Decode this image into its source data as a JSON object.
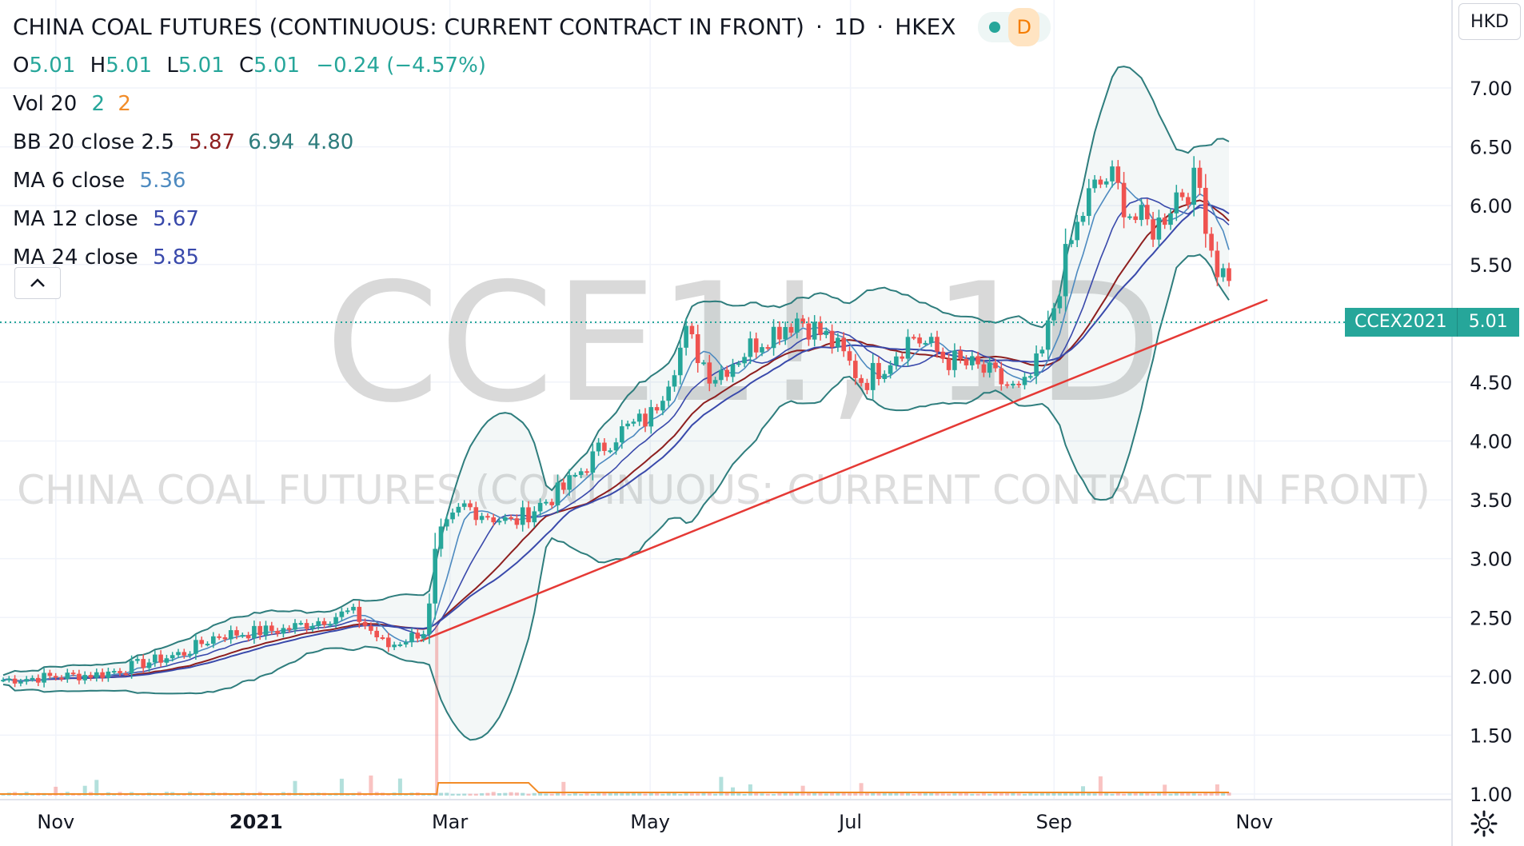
{
  "header": {
    "title": "CHINA COAL FUTURES (CONTINUOUS: CURRENT CONTRACT IN FRONT)",
    "interval": "1D",
    "exchange": "HKEX",
    "badge_letter": "D"
  },
  "ohlc": {
    "o_label": "O",
    "o": "5.01",
    "h_label": "H",
    "h": "5.01",
    "l_label": "L",
    "l": "5.01",
    "c_label": "C",
    "c": "5.01",
    "change": "−0.24 (−4.57%)"
  },
  "indicators": {
    "vol": {
      "name": "Vol 20",
      "v1": "2",
      "v2": "2"
    },
    "bb": {
      "name": "BB 20 close 2.5",
      "mid": "5.87",
      "upper": "6.94",
      "lower": "4.80"
    },
    "ma6": {
      "name": "MA 6 close",
      "value": "5.36"
    },
    "ma12": {
      "name": "MA 12 close",
      "value": "5.67"
    },
    "ma24": {
      "name": "MA 24 close",
      "value": "5.85"
    }
  },
  "watermark": {
    "symbol": "CCE1!, 1D",
    "name": "CHINA COAL FUTURES (CONTINUOUS: CURRENT CONTRACT IN FRONT)"
  },
  "currency": "HKD",
  "price_tag": {
    "symbol": "CCEX2021",
    "value": "5.01"
  },
  "colors": {
    "up": "#26a69a",
    "down": "#ef5350",
    "bb_band": "#2e7d7d",
    "ma6": "#4d8ac0",
    "ma12": "#3949ab",
    "ma24": "#8e1f1f",
    "trendline": "#e53935",
    "volume_ma": "#f28c28"
  },
  "chart_data": {
    "type": "candlestick",
    "y_axis": {
      "ticks": [
        "7.00",
        "6.50",
        "6.00",
        "5.50",
        "5.00",
        "4.50",
        "4.00",
        "3.50",
        "3.00",
        "2.50",
        "2.00",
        "1.50",
        "1.00"
      ],
      "range": [
        1.0,
        7.0
      ]
    },
    "x_axis": {
      "labels": [
        "Nov",
        "2021",
        "Mar",
        "May",
        "Jul",
        "Sep",
        "Nov"
      ]
    },
    "last_price": 5.01,
    "trendline": [
      {
        "date": "2021-02-20",
        "price": 2.3
      },
      {
        "date": "2021-11-05",
        "price": 5.2
      }
    ],
    "close_path": [
      [
        "2020-10-15",
        1.97
      ],
      [
        "2020-11-15",
        2.02
      ],
      [
        "2020-12-10",
        2.2
      ],
      [
        "2020-12-20",
        2.35
      ],
      [
        "2021-01-10",
        2.4
      ],
      [
        "2021-01-30",
        2.55
      ],
      [
        "2021-02-10",
        2.25
      ],
      [
        "2021-02-22",
        2.4
      ],
      [
        "2021-02-25",
        3.15
      ],
      [
        "2021-03-05",
        3.45
      ],
      [
        "2021-03-20",
        3.3
      ],
      [
        "2021-04-05",
        3.6
      ],
      [
        "2021-04-20",
        4.05
      ],
      [
        "2021-05-01",
        4.2
      ],
      [
        "2021-05-12",
        4.9
      ],
      [
        "2021-05-20",
        4.55
      ],
      [
        "2021-06-05",
        4.9
      ],
      [
        "2021-06-15",
        5.05
      ],
      [
        "2021-06-25",
        4.85
      ],
      [
        "2021-07-05",
        4.5
      ],
      [
        "2021-07-20",
        4.9
      ],
      [
        "2021-07-30",
        4.7
      ],
      [
        "2021-08-10",
        4.6
      ],
      [
        "2021-08-22",
        4.4
      ],
      [
        "2021-08-28",
        4.7
      ],
      [
        "2021-09-05",
        5.6
      ],
      [
        "2021-09-12",
        6.1
      ],
      [
        "2021-09-18",
        6.25
      ],
      [
        "2021-09-25",
        5.9
      ],
      [
        "2021-10-02",
        5.8
      ],
      [
        "2021-10-08",
        6.1
      ],
      [
        "2021-10-15",
        6.2
      ],
      [
        "2021-10-20",
        5.5
      ],
      [
        "2021-10-25",
        5.35
      ]
    ]
  }
}
